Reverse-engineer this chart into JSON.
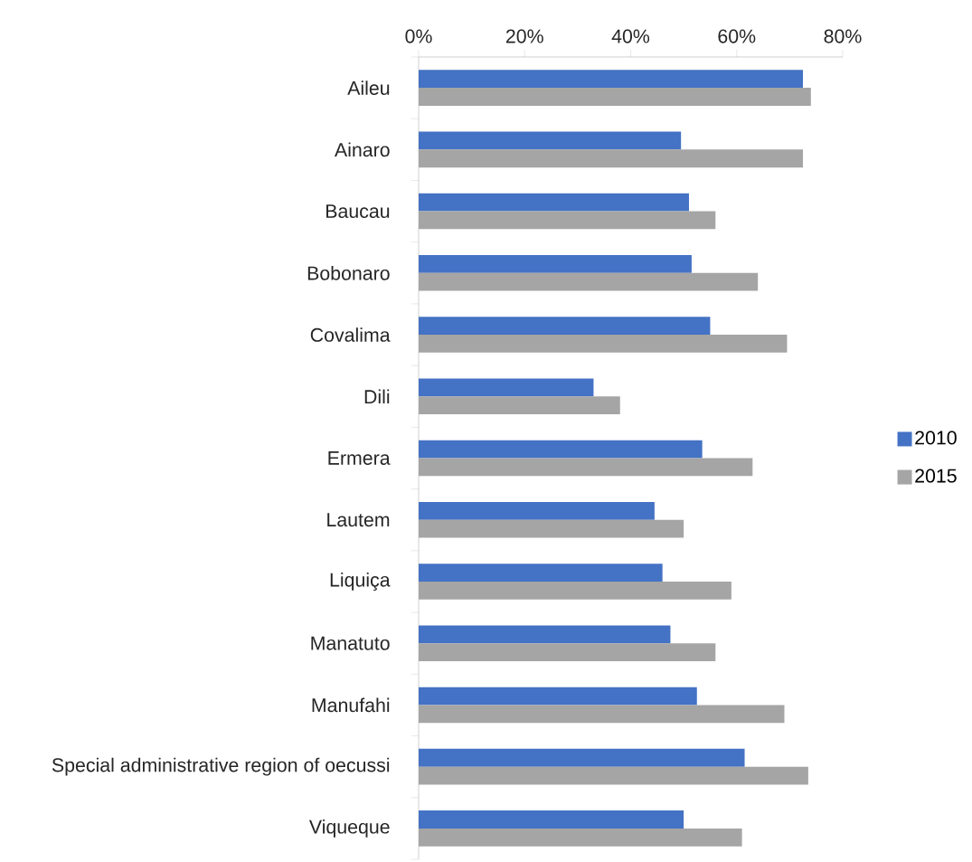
{
  "chart_data": {
    "type": "bar",
    "orientation": "horizontal",
    "categories": [
      "Aileu",
      "Ainaro",
      "Baucau",
      "Bobonaro",
      "Covalima",
      "Dili",
      "Ermera",
      "Lautem",
      "Liquiça",
      "Manatuto",
      "Manufahi",
      "Special administrative region of oecussi",
      "Viqueque"
    ],
    "series": [
      {
        "name": "2010",
        "color": "#4472c4",
        "values": [
          72.5,
          49.5,
          51,
          51.5,
          55,
          33,
          53.5,
          44.5,
          46,
          47.5,
          52.5,
          61.5,
          50
        ]
      },
      {
        "name": "2015",
        "color": "#a5a5a5",
        "values": [
          74,
          72.5,
          56,
          64,
          69.5,
          38,
          63,
          50,
          59,
          56,
          69,
          73.5,
          61
        ]
      }
    ],
    "xlim": [
      0,
      80
    ],
    "xticks": [
      {
        "value": 0,
        "label": "0%"
      },
      {
        "value": 20,
        "label": "20%"
      },
      {
        "value": 40,
        "label": "40%"
      },
      {
        "value": 60,
        "label": "60%"
      },
      {
        "value": 80,
        "label": "80%"
      }
    ],
    "legend": "right",
    "grid": false
  }
}
